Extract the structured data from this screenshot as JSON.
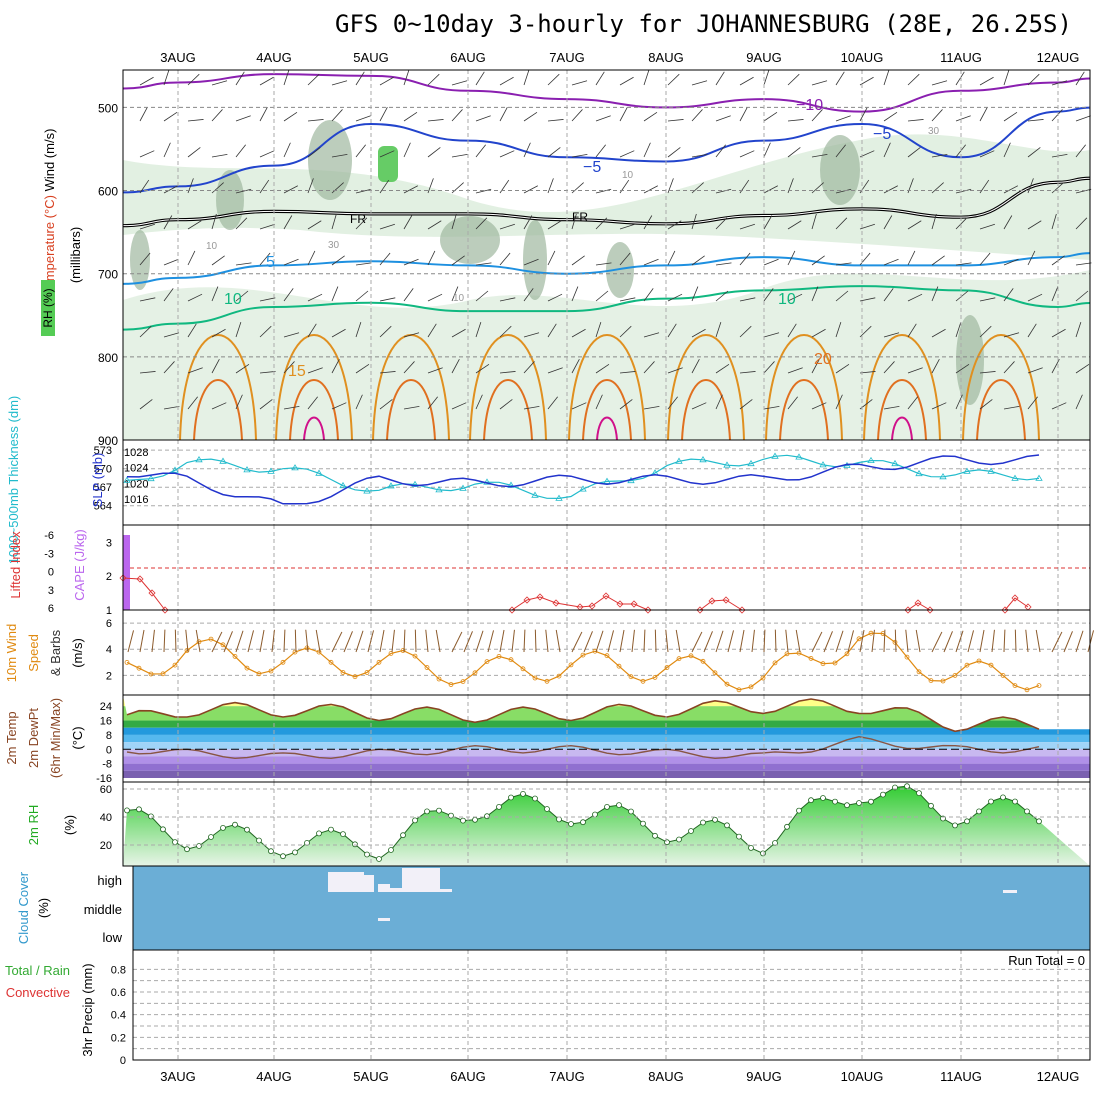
{
  "title": "GFS 0~10day 3-hourly for JOHANNESBURG (28E, 26.25S)",
  "dates": [
    "3AUG",
    "4AUG",
    "5AUG",
    "6AUG",
    "7AUG",
    "8AUG",
    "9AUG",
    "10AUG",
    "11AUG",
    "12AUG"
  ],
  "colors": {
    "rh_green": "#cfe6cf",
    "rh_dark": "#9fb8a0",
    "temp_neg10": "#8a1fb0",
    "temp_neg5": "#2244cc",
    "temp_5": "#1e90e0",
    "temp_10": "#10b880",
    "temp_15": "#e09020",
    "temp_20": "#e07020",
    "temp_25": "#d0108a",
    "thickness": "#22bbcc",
    "slp": "#2233cc",
    "lifted": "#dd3333",
    "cape": "#bb66ee",
    "wind10": "#e08a10",
    "barbs10": "#8b5a2b",
    "cloud": "#6baed6",
    "precip_total": "#33aa33",
    "precip_conv": "#dd3333"
  },
  "panel_labels": {
    "upper_wind": "Wind (m/s)",
    "upper_temp": "Temperature (°C)",
    "upper_rh": "RH (%)",
    "upper_units": "(millibars)",
    "thickness": "1000~500mb Thickness (dm)",
    "slp": "SLP (mb)",
    "lifted": "Lifted Index",
    "cape": "CAPE (J/kg)",
    "wind10_a": "10m Wind",
    "wind10_b": "Speed",
    "wind10_c": "& Barbs",
    "wind10_units": "(m/s)",
    "temp2m_a": "2m Temp",
    "temp2m_b": "2m DewPt",
    "temp2m_c": "(6hr Min/Max)",
    "temp2m_units": "(°C)",
    "rh2m": "2m RH",
    "rh2m_units": "(%)",
    "cloud": "Cloud Cover",
    "cloud_units": "(%)",
    "precip_a": "Total / Rain",
    "precip_b": "Convective",
    "precip_c": "3hr Precip (mm)",
    "run_total": "Run Total = 0"
  },
  "contour_labels": {
    "neg10": "−10",
    "neg5a": "−5",
    "neg5b": "−5",
    "fr1": "FR",
    "fr2": "FR",
    "t5": "5",
    "t10a": "10",
    "t10b": "10",
    "t15": "15",
    "t20": "20",
    "rh10a": "10",
    "rh10b": "10",
    "rh10c": "10",
    "rh30a": "30",
    "rh30b": "30"
  },
  "cloud_levels": [
    "high",
    "middle",
    "low"
  ],
  "chart_data": [
    {
      "type": "area",
      "panel": "upper-air cross section",
      "ylabel": "millibars",
      "y_ticks": [
        500,
        600,
        700,
        800,
        900
      ],
      "ylim": [
        900,
        450
      ],
      "x": [
        "3AUG",
        "4AUG",
        "5AUG",
        "6AUG",
        "7AUG",
        "8AUG",
        "9AUG",
        "10AUG",
        "11AUG",
        "12AUG"
      ],
      "series": [
        {
          "name": "FR",
          "values": [
            635,
            625,
            628,
            628,
            635,
            640,
            630,
            622,
            632,
            590
          ]
        },
        {
          "name": "-10",
          "values": [
            470,
            460,
            462,
            480,
            490,
            500,
            490,
            505,
            480,
            470
          ]
        },
        {
          "name": "-5",
          "values": [
            595,
            570,
            520,
            540,
            560,
            565,
            540,
            520,
            560,
            505
          ]
        },
        {
          "name": "5",
          "values": [
            705,
            690,
            685,
            690,
            700,
            690,
            680,
            690,
            690,
            680
          ]
        },
        {
          "name": "10",
          "values": [
            760,
            740,
            735,
            745,
            745,
            730,
            720,
            715,
            720,
            740
          ]
        }
      ]
    },
    {
      "type": "line",
      "panel": "thickness and SLP",
      "y_ticks_left": [
        564,
        567,
        570,
        573
      ],
      "y_ticks_right": [
        1016,
        1020,
        1024,
        1028
      ],
      "x": [
        "3AUG",
        "4AUG",
        "5AUG",
        "6AUG",
        "7AUG",
        "8AUG",
        "9AUG",
        "10AUG",
        "11AUG",
        "12AUG"
      ],
      "series": [
        {
          "name": "Thickness (dm)",
          "values": [
            565.5,
            571,
            570,
            566.5,
            567.5,
            565.5,
            570.5,
            571.5,
            571,
            569
          ]
        },
        {
          "name": "SLP (mb)",
          "values": [
            1024,
            1021,
            1014,
            1021,
            1020,
            1021,
            1021,
            1021,
            1024,
            1026
          ]
        }
      ]
    },
    {
      "type": "line",
      "panel": "lifted index and CAPE",
      "y_ticks_left": [
        -6,
        -3,
        0,
        3,
        6
      ],
      "y_ticks_right": [
        1,
        2,
        3
      ],
      "x": [
        "3AUG",
        "4AUG",
        "5AUG",
        "6AUG",
        "7AUG",
        "8AUG",
        "9AUG",
        "10AUG",
        "11AUG",
        "12AUG"
      ],
      "series": [
        {
          "name": "Lifted Index",
          "values": [
            2.5,
            null,
            null,
            null,
            5,
            5.2,
            null,
            null,
            5.5,
            null
          ]
        },
        {
          "name": "CAPE",
          "values": [
            3,
            0,
            0,
            0,
            0,
            0,
            0,
            0,
            0,
            0
          ]
        }
      ]
    },
    {
      "type": "line",
      "panel": "10m wind speed",
      "ylabel": "m/s",
      "y_ticks": [
        2,
        4,
        6
      ],
      "ylim": [
        0.5,
        7
      ],
      "x": [
        "3AUG",
        "4AUG",
        "5AUG",
        "6AUG",
        "7AUG",
        "8AUG",
        "9AUG",
        "10AUG",
        "11AUG",
        "12AUG"
      ],
      "values": [
        1.2,
        3.9,
        3.0,
        3.0,
        2.2,
        2.8,
        2.6,
        1.8,
        4.8,
        2.0
      ]
    },
    {
      "type": "area",
      "panel": "2m temperature and dewpoint",
      "ylabel": "°C",
      "y_ticks": [
        -16,
        -8,
        0,
        8,
        16,
        24
      ],
      "ylim": [
        -16,
        28
      ],
      "x": [
        "3AUG",
        "4AUG",
        "5AUG",
        "6AUG",
        "7AUG",
        "8AUG",
        "9AUG",
        "10AUG",
        "11AUG",
        "12AUG"
      ],
      "series": [
        {
          "name": "2m Temp",
          "values": [
            13,
            22,
            22,
            20,
            19,
            20,
            22,
            24,
            24,
            14
          ]
        },
        {
          "name": "2m DewPt",
          "values": [
            1,
            -2,
            -4,
            -2,
            0,
            0,
            -2,
            -4,
            5,
            0
          ]
        }
      ]
    },
    {
      "type": "area",
      "panel": "2m RH",
      "ylabel": "%",
      "y_ticks": [
        20,
        40,
        60
      ],
      "ylim": [
        5,
        65
      ],
      "x": [
        "3AUG",
        "4AUG",
        "5AUG",
        "6AUG",
        "7AUG",
        "8AUG",
        "9AUG",
        "10AUG",
        "11AUG",
        "12AUG"
      ],
      "values": [
        44,
        27,
        22,
        20,
        48,
        45,
        32,
        24,
        60,
        44
      ]
    },
    {
      "type": "bar",
      "panel": "cloud cover",
      "ylabel": "%",
      "categories": [
        "high",
        "middle",
        "low"
      ]
    },
    {
      "type": "bar",
      "panel": "3hr precip",
      "ylabel": "mm",
      "y_ticks": [
        0,
        0.2,
        0.4,
        0.6,
        0.8
      ],
      "ylim": [
        0,
        0.9
      ],
      "x": [
        "3AUG",
        "4AUG",
        "5AUG",
        "6AUG",
        "7AUG",
        "8AUG",
        "9AUG",
        "10AUG",
        "11AUG",
        "12AUG"
      ],
      "values": [
        0,
        0,
        0,
        0,
        0,
        0,
        0,
        0,
        0,
        0
      ]
    }
  ]
}
